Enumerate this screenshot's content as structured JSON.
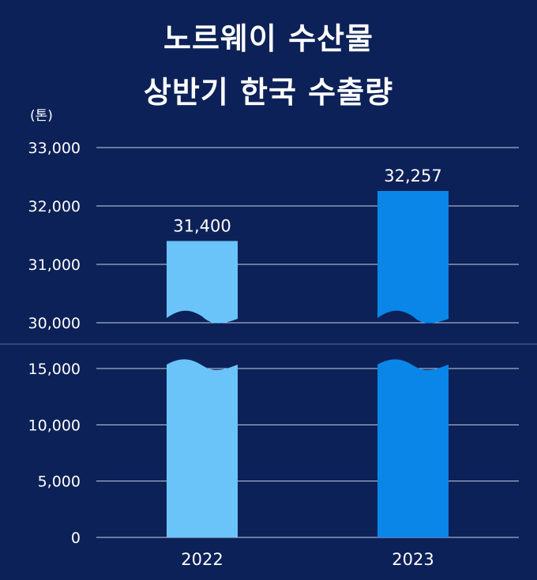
{
  "title": {
    "line1": "노르웨이 수산물",
    "line2": "상반기 한국 수출량"
  },
  "chart_data": {
    "type": "bar",
    "title": "노르웨이 수산물 상반기 한국 수출량",
    "unit_label": "(톤)",
    "categories": [
      "2022",
      "2023"
    ],
    "values": [
      31400,
      32257
    ],
    "value_labels": [
      "31,400",
      "32,257"
    ],
    "axis_break": true,
    "upper_ylim": [
      30000,
      33000
    ],
    "upper_ticks": [
      {
        "value": 33000,
        "label": "33,000"
      },
      {
        "value": 32000,
        "label": "32,000"
      },
      {
        "value": 31000,
        "label": "31,000"
      },
      {
        "value": 30000,
        "label": "30,000"
      }
    ],
    "lower_ylim": [
      0,
      15000
    ],
    "lower_ticks": [
      {
        "value": 15000,
        "label": "15,000"
      },
      {
        "value": 10000,
        "label": "10,000"
      },
      {
        "value": 5000,
        "label": "5,000"
      },
      {
        "value": 0,
        "label": "0"
      }
    ],
    "bar_colors": [
      "#6ac4fa",
      "#0a86e8"
    ],
    "grid": true,
    "legend": "none"
  }
}
